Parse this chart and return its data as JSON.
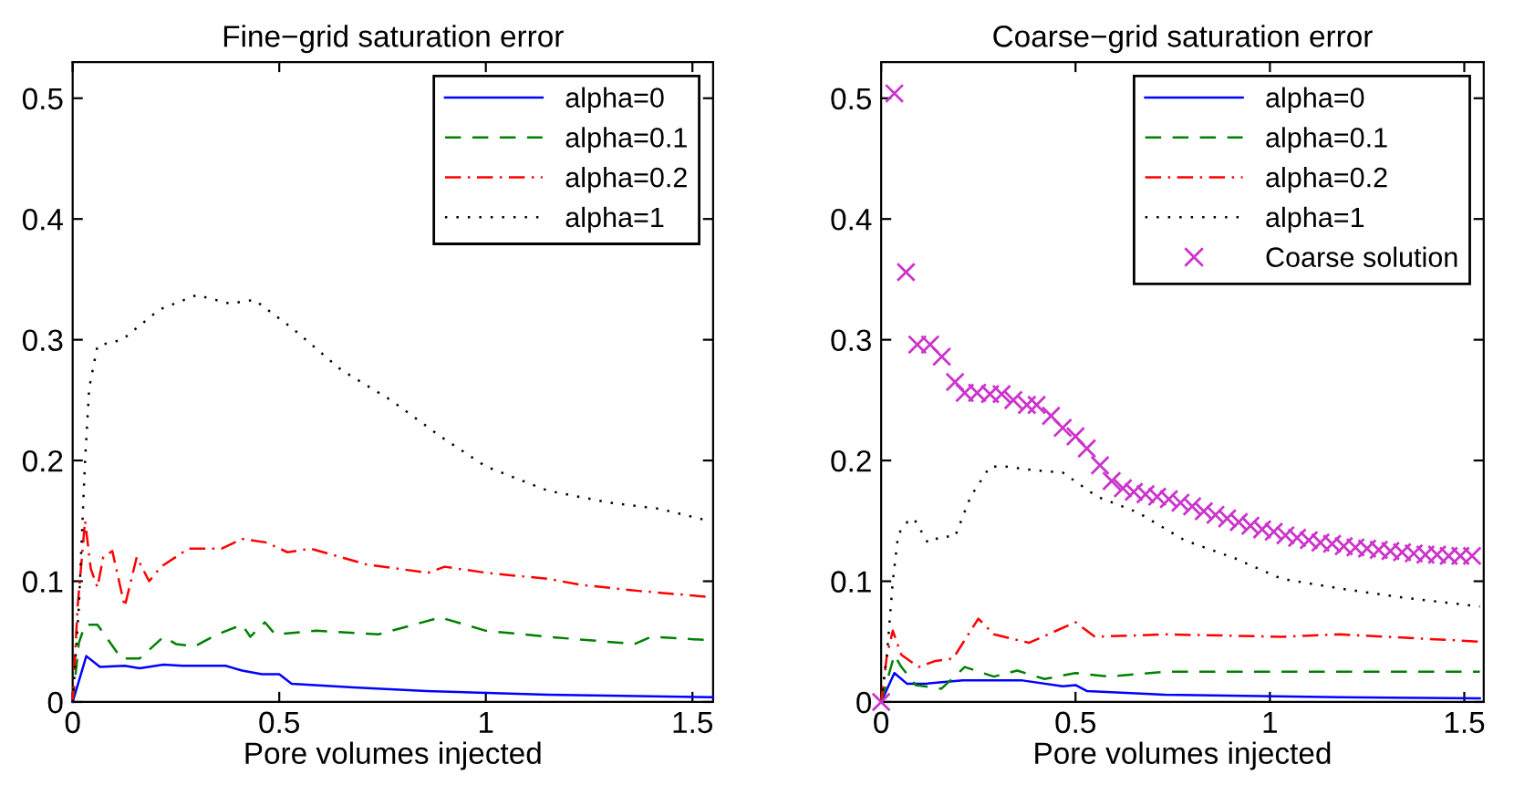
{
  "chart_data": [
    {
      "type": "line",
      "title": "Fine−grid saturation error",
      "xlabel": "Pore volumes injected",
      "xlim": [
        0,
        1.55
      ],
      "ylim": [
        0,
        0.53
      ],
      "xticks": [
        0,
        0.5,
        1,
        1.5
      ],
      "yticks": [
        0,
        0.1,
        0.2,
        0.3,
        0.4,
        0.5
      ],
      "grid": false,
      "legend": "top right",
      "marker": "none",
      "series": [
        {
          "name": "alpha=0",
          "color": "#0000ff",
          "line_style": "solid",
          "x": [
            0,
            0.033,
            0.066,
            0.126,
            0.162,
            0.22,
            0.266,
            0.37,
            0.41,
            0.458,
            0.5,
            0.53,
            0.68,
            0.857,
            1.15,
            1.55
          ],
          "values": [
            0,
            0.038,
            0.029,
            0.03,
            0.028,
            0.031,
            0.03,
            0.03,
            0.026,
            0.023,
            0.023,
            0.015,
            0.012,
            0.009,
            0.006,
            0.004
          ]
        },
        {
          "name": "alpha=0.1",
          "color": "#008000",
          "line_style": "dashed",
          "x": [
            0,
            0.015,
            0.03,
            0.06,
            0.118,
            0.162,
            0.22,
            0.25,
            0.295,
            0.35,
            0.41,
            0.43,
            0.465,
            0.49,
            0.59,
            0.74,
            0.89,
            1.0,
            1.15,
            1.36,
            1.4,
            1.55
          ],
          "values": [
            0,
            0.049,
            0.064,
            0.064,
            0.036,
            0.036,
            0.054,
            0.048,
            0.046,
            0.056,
            0.064,
            0.054,
            0.066,
            0.056,
            0.059,
            0.056,
            0.07,
            0.059,
            0.054,
            0.048,
            0.054,
            0.051
          ]
        },
        {
          "name": "alpha=0.2",
          "color": "#ff0000",
          "line_style": "dashdot",
          "x": [
            0,
            0.012,
            0.03,
            0.044,
            0.06,
            0.074,
            0.096,
            0.126,
            0.155,
            0.185,
            0.214,
            0.28,
            0.36,
            0.41,
            0.47,
            0.52,
            0.576,
            0.71,
            0.86,
            0.9,
            1.0,
            1.15,
            1.23,
            1.37,
            1.54
          ],
          "values": [
            0,
            0.079,
            0.15,
            0.11,
            0.095,
            0.12,
            0.125,
            0.079,
            0.12,
            0.1,
            0.112,
            0.127,
            0.127,
            0.135,
            0.132,
            0.124,
            0.127,
            0.114,
            0.107,
            0.112,
            0.107,
            0.102,
            0.097,
            0.092,
            0.087
          ]
        },
        {
          "name": "alpha=1",
          "color": "#000000",
          "line_style": "dotted",
          "x": [
            0,
            0.015,
            0.03,
            0.04,
            0.06,
            0.12,
            0.21,
            0.3,
            0.38,
            0.44,
            0.53,
            0.65,
            0.77,
            0.89,
            1.0,
            1.15,
            1.3,
            1.42,
            1.54
          ],
          "values": [
            0,
            0.079,
            0.2,
            0.26,
            0.295,
            0.3,
            0.325,
            0.337,
            0.33,
            0.333,
            0.31,
            0.275,
            0.25,
            0.22,
            0.195,
            0.175,
            0.165,
            0.16,
            0.15
          ]
        }
      ]
    },
    {
      "type": "line",
      "title": "Coarse−grid saturation error",
      "xlabel": "Pore volumes injected",
      "xlim": [
        0,
        1.55
      ],
      "ylim": [
        0,
        0.53
      ],
      "xticks": [
        0,
        0.5,
        1,
        1.5
      ],
      "yticks": [
        0,
        0.1,
        0.2,
        0.3,
        0.4,
        0.5
      ],
      "grid": false,
      "legend": "top right",
      "marker": "none",
      "series": [
        {
          "name": "alpha=0",
          "color": "#0000ff",
          "line_style": "solid",
          "x": [
            0,
            0.034,
            0.067,
            0.11,
            0.21,
            0.36,
            0.467,
            0.5,
            0.53,
            0.73,
            1.18,
            1.54
          ],
          "values": [
            0,
            0.024,
            0.015,
            0.015,
            0.018,
            0.018,
            0.013,
            0.014,
            0.009,
            0.006,
            0.004,
            0.003
          ]
        },
        {
          "name": "alpha=0.1",
          "color": "#008000",
          "line_style": "dashed",
          "x": [
            0,
            0.034,
            0.052,
            0.089,
            0.155,
            0.215,
            0.29,
            0.35,
            0.42,
            0.5,
            0.585,
            0.73,
            1.54
          ],
          "values": [
            0,
            0.039,
            0.029,
            0.014,
            0.011,
            0.029,
            0.021,
            0.026,
            0.019,
            0.024,
            0.021,
            0.025,
            0.025
          ]
        },
        {
          "name": "alpha=0.2",
          "color": "#ff0000",
          "line_style": "dashdot",
          "x": [
            0,
            0.015,
            0.03,
            0.052,
            0.096,
            0.14,
            0.185,
            0.25,
            0.29,
            0.38,
            0.5,
            0.55,
            0.73,
            1.03,
            1.18,
            1.54
          ],
          "values": [
            0,
            0.039,
            0.059,
            0.039,
            0.029,
            0.034,
            0.036,
            0.069,
            0.056,
            0.049,
            0.066,
            0.054,
            0.056,
            0.054,
            0.056,
            0.05
          ]
        },
        {
          "name": "alpha=1",
          "color": "#000000",
          "line_style": "dotted",
          "x": [
            0,
            0.015,
            0.03,
            0.044,
            0.067,
            0.084,
            0.12,
            0.155,
            0.19,
            0.23,
            0.28,
            0.32,
            0.39,
            0.467,
            0.556,
            0.66,
            0.78,
            0.91,
            1.03,
            1.18,
            1.33,
            1.54
          ],
          "values": [
            0,
            0.039,
            0.1,
            0.139,
            0.149,
            0.152,
            0.132,
            0.137,
            0.137,
            0.17,
            0.195,
            0.195,
            0.192,
            0.19,
            0.17,
            0.157,
            0.134,
            0.119,
            0.102,
            0.094,
            0.087,
            0.079
          ]
        },
        {
          "name": "Coarse solution",
          "type": "scatter",
          "marker": "cross",
          "color": "#cc33cc",
          "x": [
            0,
            0.034,
            0.064,
            0.093,
            0.126,
            0.156,
            0.19,
            0.215,
            0.247,
            0.28,
            0.31,
            0.34,
            0.375,
            0.4,
            0.437,
            0.467,
            0.5,
            0.529,
            0.563,
            0.593,
            0.622,
            0.65,
            0.68,
            0.71,
            0.74,
            0.77,
            0.8,
            0.83,
            0.86,
            0.89,
            0.92,
            0.95,
            0.98,
            1.01,
            1.04,
            1.07,
            1.1,
            1.13,
            1.16,
            1.19,
            1.22,
            1.25,
            1.28,
            1.31,
            1.34,
            1.37,
            1.4,
            1.43,
            1.46,
            1.49,
            1.52
          ],
          "values": [
            0,
            0.504,
            0.356,
            0.296,
            0.296,
            0.286,
            0.265,
            0.256,
            0.256,
            0.255,
            0.255,
            0.25,
            0.246,
            0.246,
            0.237,
            0.227,
            0.22,
            0.21,
            0.196,
            0.183,
            0.177,
            0.174,
            0.172,
            0.17,
            0.168,
            0.165,
            0.162,
            0.158,
            0.155,
            0.152,
            0.149,
            0.146,
            0.143,
            0.141,
            0.138,
            0.136,
            0.134,
            0.132,
            0.131,
            0.129,
            0.128,
            0.127,
            0.126,
            0.125,
            0.124,
            0.123,
            0.122,
            0.122,
            0.121,
            0.121,
            0.121
          ]
        }
      ]
    }
  ]
}
